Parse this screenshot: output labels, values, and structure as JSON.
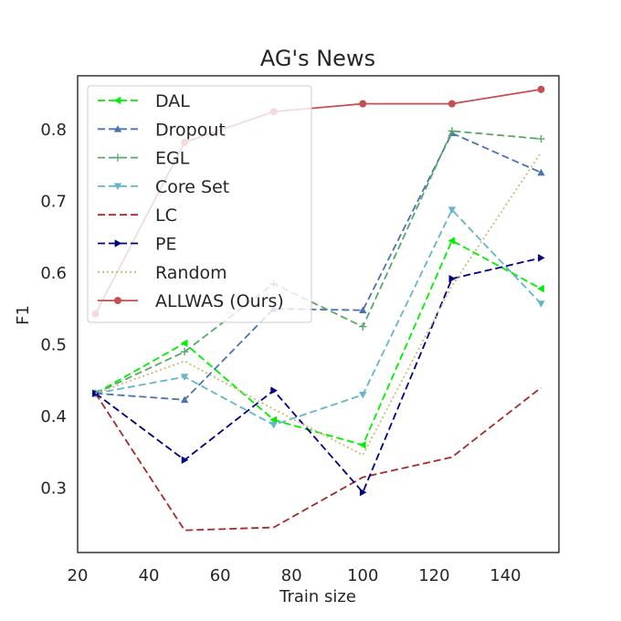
{
  "chart_data": {
    "type": "line",
    "title": "AG's News",
    "xlabel": "Train size",
    "ylabel": "F1",
    "xlim": [
      20,
      155
    ],
    "ylim": [
      0.21,
      0.875
    ],
    "xticks": [
      20,
      40,
      60,
      80,
      100,
      120,
      140
    ],
    "yticks": [
      0.3,
      0.4,
      0.5,
      0.6,
      0.7,
      0.8
    ],
    "grid": false,
    "legend_position": "top-left",
    "x": [
      25,
      50,
      75,
      100,
      125,
      150
    ],
    "series": [
      {
        "name": "DAL",
        "values": [
          0.432,
          0.502,
          0.395,
          0.36,
          0.645,
          0.578
        ],
        "color": "#00ee00",
        "dash": "8,4",
        "marker": "triangle-left"
      },
      {
        "name": "Dropout",
        "values": [
          0.432,
          0.423,
          0.55,
          0.548,
          0.795,
          0.74
        ],
        "color": "#4c72b0",
        "dash": "8,4",
        "marker": "triangle-up"
      },
      {
        "name": "EGL",
        "values": [
          0.432,
          0.49,
          0.585,
          0.525,
          0.798,
          0.787
        ],
        "color": "#55a868",
        "dash": "8,4",
        "marker": "plus"
      },
      {
        "name": "Core Set",
        "values": [
          0.432,
          0.455,
          0.388,
          0.43,
          0.688,
          0.557
        ],
        "color": "#64b5cd",
        "dash": "8,4",
        "marker": "triangle-down"
      },
      {
        "name": "LC",
        "values": [
          0.432,
          0.241,
          0.245,
          0.315,
          0.343,
          0.44
        ],
        "color": "#a52a2a",
        "dash": "8,4",
        "marker": "none"
      },
      {
        "name": "PE",
        "values": [
          0.432,
          0.339,
          0.436,
          0.294,
          0.592,
          0.621
        ],
        "color": "#000080",
        "dash": "8,4",
        "marker": "triangle-right"
      },
      {
        "name": "Random",
        "values": [
          0.432,
          0.477,
          0.41,
          0.346,
          0.582,
          0.768
        ],
        "color": "#ccb974",
        "dash": "2,3",
        "marker": "none"
      },
      {
        "name": "ALLWAS (Ours)",
        "values": [
          0.543,
          0.782,
          0.825,
          0.836,
          0.836,
          0.856
        ],
        "color": "#c44e52",
        "dash": "",
        "marker": "circle"
      }
    ]
  }
}
